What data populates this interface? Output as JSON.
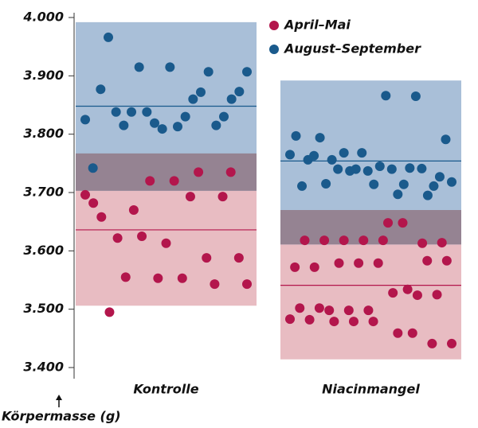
{
  "chart_data": {
    "type": "strip",
    "y_label": "Körpermasse (g)",
    "categories": [
      "Kontrolle",
      "Niacinmangel"
    ],
    "ylim": [
      3400,
      4000
    ],
    "yticks": [
      {
        "value": 4000,
        "label": "4.000"
      },
      {
        "value": 3900,
        "label": "3.900"
      },
      {
        "value": 3800,
        "label": "3.800"
      },
      {
        "value": 3700,
        "label": "3.700"
      },
      {
        "value": 3600,
        "label": "3.600"
      },
      {
        "value": 3500,
        "label": "3.500"
      },
      {
        "value": 3400,
        "label": "3.400"
      }
    ],
    "overlap_color": "#958392",
    "series": [
      {
        "name": "April–Mai",
        "color": "#b3164c",
        "band_color": "#e8bcc2",
        "values": [
          [
            3696,
            3682,
            3658,
            3495,
            3622,
            3555,
            3670,
            3625,
            3720,
            3553,
            3613,
            3720,
            3553,
            3693,
            3735,
            3588,
            3543,
            3693,
            3735,
            3588,
            3543
          ],
          [
            3483,
            3572,
            3502,
            3618,
            3482,
            3572,
            3502,
            3618,
            3498,
            3479,
            3579,
            3618,
            3498,
            3479,
            3579,
            3618,
            3498,
            3479,
            3579,
            3618,
            3648,
            3528,
            3459,
            3648,
            3534,
            3459,
            3524,
            3613,
            3583,
            3441,
            3525,
            3614,
            3583,
            3441
          ]
        ],
        "means": [
          3636,
          3541
        ],
        "ranges": [
          [
            3506,
            3767
          ],
          [
            3414,
            3670
          ]
        ]
      },
      {
        "name": "August–September",
        "color": "#1a5a8c",
        "band_color": "#a9bfd8",
        "values": [
          [
            3825,
            3742,
            3877,
            3966,
            3838,
            3815,
            3838,
            3915,
            3838,
            3819,
            3809,
            3915,
            3813,
            3830,
            3860,
            3872,
            3907,
            3815,
            3830,
            3860,
            3873,
            3907
          ],
          [
            3765,
            3797,
            3711,
            3756,
            3763,
            3794,
            3715,
            3756,
            3740,
            3768,
            3737,
            3740,
            3768,
            3737,
            3714,
            3745,
            3866,
            3740,
            3697,
            3714,
            3742,
            3865,
            3741,
            3695,
            3711,
            3727,
            3791,
            3718
          ]
        ],
        "means": [
          3848,
          3754
        ],
        "ranges": [
          [
            3703,
            3992
          ],
          [
            3611,
            3892
          ]
        ]
      }
    ]
  }
}
